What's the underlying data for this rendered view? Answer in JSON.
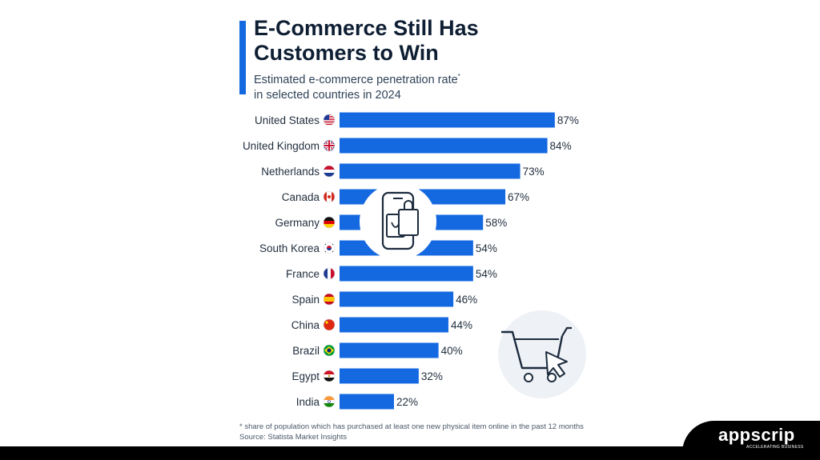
{
  "header": {
    "title": "E-Commerce Still Has Customers to Win",
    "subtitle": "Estimated e-commerce penetration rate",
    "subtitle_mark": "*",
    "subtitle_line2": "in selected countries in 2024"
  },
  "chart_data": {
    "type": "bar",
    "orientation": "horizontal",
    "categories": [
      "United States",
      "United Kingdom",
      "Netherlands",
      "Canada",
      "Germany",
      "South Korea",
      "France",
      "Spain",
      "China",
      "Brazil",
      "Egypt",
      "India"
    ],
    "values": [
      87,
      84,
      73,
      67,
      58,
      54,
      54,
      46,
      44,
      40,
      32,
      22
    ],
    "value_labels": [
      "87%",
      "84%",
      "73%",
      "67%",
      "58%",
      "54%",
      "54%",
      "46%",
      "44%",
      "40%",
      "32%",
      "22%"
    ],
    "unit": "%",
    "xlim": [
      0,
      100
    ],
    "grid": false,
    "bar_color": "#1569e0"
  },
  "flags": [
    "us",
    "gb",
    "nl",
    "ca",
    "de",
    "kr",
    "fr",
    "es",
    "cn",
    "br",
    "eg",
    "in"
  ],
  "footer": {
    "footnote": "* share of population which has purchased at least one new physical item online in the past 12 months",
    "source": "Source: Statista Market Insights"
  },
  "brand": {
    "name": "appscrip",
    "tagline": "ACCELERATING BUSINESS"
  },
  "icons": [
    "phone-shopping-bag-icon",
    "shopping-cart-cursor-icon"
  ]
}
